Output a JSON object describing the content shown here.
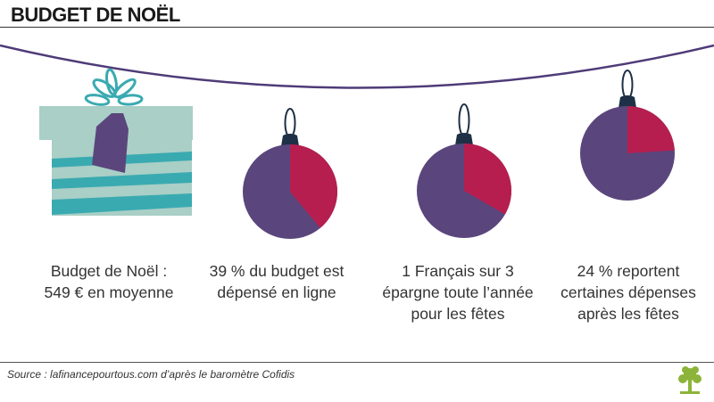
{
  "header": {
    "title": "BUDGET DE NOËL"
  },
  "colors": {
    "purple": "#5a467c",
    "crimson": "#b51e4f",
    "cap": "#1e3045",
    "string": "#4e3b78",
    "box_light": "#a9cfc6",
    "box_teal": "#3aaab1",
    "ribbon": "#3aaab1",
    "tree": "#8cb43a"
  },
  "chart_data": {
    "type": "pie",
    "title": "BUDGET DE NOËL",
    "items": [
      {
        "kind": "gift",
        "label": "Budget de Noël :\n549 € en moyenne",
        "value": 549,
        "unit": "€"
      },
      {
        "kind": "pie",
        "label": "39 % du budget est\ndépensé en ligne",
        "percent": 39
      },
      {
        "kind": "pie",
        "label": "1 Français sur 3\népargne toute l’année\npour les fêtes",
        "fraction": 0.3333
      },
      {
        "kind": "pie",
        "label": "24 % reportent\ncertaines dépenses\naprès les fêtes",
        "percent": 24
      }
    ]
  },
  "source": "Source : lafinancepourtous.com d’après le baromètre Cofidis",
  "icons": {
    "logo": "tree-icon"
  }
}
